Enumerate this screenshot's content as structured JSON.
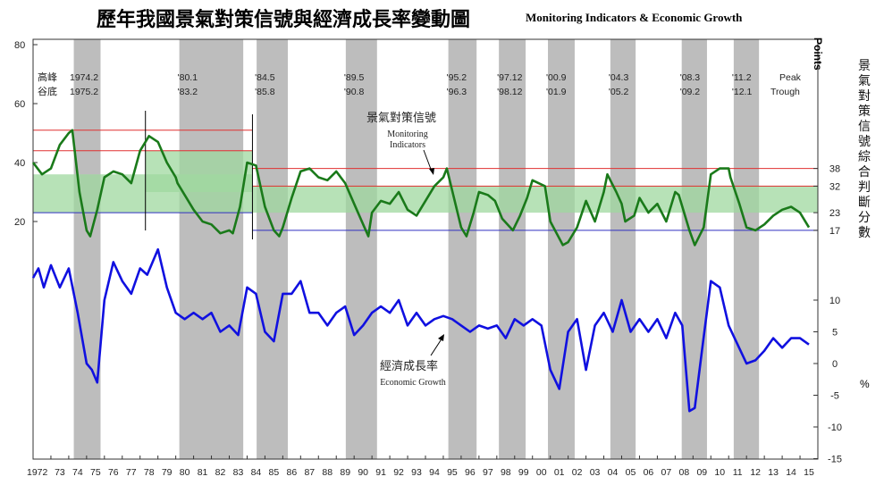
{
  "title": {
    "zh": "歷年我國景氣對策信號與經濟成長率變動圖",
    "en": "Monitoring Indicators & Economic Growth"
  },
  "axes": {
    "left_ticks": [
      "80",
      "60",
      "40",
      "20"
    ],
    "right_points_ticks": [
      "38",
      "32",
      "23",
      "17"
    ],
    "right_growth_ticks": [
      "10",
      "5",
      "0",
      "-5",
      "-10",
      "-15"
    ],
    "points_label": "Points",
    "right_ylabel_zh": "景氣對策信號綜合判斷分數",
    "percent_label": "%"
  },
  "x_labels": [
    "1972",
    "73",
    "74",
    "75",
    "76",
    "77",
    "78",
    "79",
    "80",
    "81",
    "82",
    "83",
    "84",
    "85",
    "86",
    "87",
    "88",
    "89",
    "90",
    "91",
    "92",
    "93",
    "94",
    "95",
    "96",
    "97",
    "98",
    "99",
    "00",
    "01",
    "02",
    "03",
    "04",
    "05",
    "06",
    "07",
    "08",
    "09",
    "10",
    "11",
    "12",
    "13",
    "14",
    "15"
  ],
  "cycle_labels": {
    "row_headers": [
      "高峰",
      "谷底"
    ],
    "peak_word": "Peak",
    "trough_word": "Trough",
    "peaks": [
      "1974.2",
      "'80.1",
      "'84.5",
      "'89.5",
      "'95.2",
      "'97.12",
      "'00.9",
      "'04.3",
      "'08.3",
      "'11.2"
    ],
    "troughs": [
      "1975.2",
      "'83.2",
      "'85.8",
      "'90.8",
      "'96.3",
      "'98.12",
      "'01.9",
      "'05.2",
      "'09.2",
      "'12.1"
    ]
  },
  "annotations": {
    "monitor_zh": "景氣對策信號",
    "monitor_en_1": "Monitoring",
    "monitor_en_2": "Indicators",
    "growth_zh": "經濟成長率",
    "growth_en": "Economic Growth"
  },
  "colors": {
    "monitoring_line": "#1a7a1a",
    "growth_line": "#1010e0",
    "recession_shade": "#bdbdbd",
    "green_band": "#9fd89f",
    "red_threshold": "#e03030",
    "blue_threshold": "#3030c0"
  },
  "chart_data": [
    {
      "type": "line",
      "name": "景氣對策信號 Monitoring Indicators",
      "x_range": [
        1972,
        2016
      ],
      "y_unit": "points",
      "x": [
        1972,
        1972.5,
        1973,
        1973.5,
        1974,
        1974.2,
        1974.6,
        1975,
        1975.2,
        1975.6,
        1976,
        1976.5,
        1977,
        1977.5,
        1978,
        1978.5,
        1979,
        1979.5,
        1980,
        1980.1,
        1980.6,
        1981,
        1981.5,
        1982,
        1982.5,
        1983,
        1983.2,
        1983.6,
        1984,
        1984.5,
        1985,
        1985.5,
        1985.8,
        1986,
        1986.5,
        1987,
        1987.5,
        1988,
        1988.5,
        1989,
        1989.5,
        1990,
        1990.8,
        1991,
        1991.5,
        1992,
        1992.5,
        1993,
        1993.5,
        1994,
        1994.5,
        1995,
        1995.2,
        1995.6,
        1996,
        1996.3,
        1996.7,
        1997,
        1997.5,
        1997.9,
        1998.3,
        1998.9,
        1999.3,
        1999.7,
        2000,
        2000.7,
        2001,
        2001.7,
        2002,
        2002.5,
        2003,
        2003.5,
        2004,
        2004.2,
        2004.7,
        2005,
        2005.2,
        2005.7,
        2006,
        2006.5,
        2007,
        2007.5,
        2008,
        2008.2,
        2008.8,
        2009.1,
        2009.6,
        2010,
        2010.5,
        2011,
        2011.1,
        2011.6,
        2012,
        2012.5,
        2013,
        2013.5,
        2014,
        2014.5,
        2015,
        2015.5
      ],
      "values": [
        40,
        36,
        38,
        46,
        50,
        51,
        30,
        17,
        15,
        24,
        35,
        37,
        36,
        33,
        44,
        49,
        47,
        40,
        35,
        33,
        28,
        24,
        20,
        19,
        16,
        17,
        16,
        25,
        40,
        39,
        25,
        17,
        15,
        18,
        28,
        37,
        38,
        35,
        34,
        37,
        33,
        26,
        15,
        23,
        27,
        26,
        30,
        24,
        22,
        27,
        32,
        35,
        38,
        28,
        18,
        15,
        23,
        30,
        29,
        27,
        21,
        17,
        22,
        28,
        34,
        32,
        20,
        12,
        13,
        18,
        27,
        20,
        30,
        36,
        30,
        26,
        20,
        22,
        28,
        23,
        26,
        20,
        30,
        29,
        17,
        12,
        18,
        36,
        38,
        38,
        35,
        26,
        18,
        17,
        19,
        22,
        24,
        25,
        23,
        18
      ]
    },
    {
      "type": "line",
      "name": "經濟成長率 Economic Growth",
      "x_range": [
        1972,
        2016
      ],
      "y_unit": "%",
      "x": [
        1972,
        1972.3,
        1972.6,
        1973,
        1973.5,
        1974,
        1974.5,
        1975,
        1975.3,
        1975.6,
        1976,
        1976.5,
        1977,
        1977.5,
        1978,
        1978.4,
        1979,
        1979.5,
        1980,
        1980.5,
        1981,
        1981.5,
        1982,
        1982.5,
        1983,
        1983.5,
        1984,
        1984.5,
        1985,
        1985.5,
        1986,
        1986.5,
        1987,
        1987.5,
        1988,
        1988.5,
        1989,
        1989.5,
        1990,
        1990.5,
        1991,
        1991.5,
        1992,
        1992.5,
        1993,
        1993.5,
        1994,
        1994.5,
        1995,
        1995.5,
        1996,
        1996.5,
        1997,
        1997.5,
        1998,
        1998.5,
        1999,
        1999.5,
        2000,
        2000.5,
        2001,
        2001.5,
        2002,
        2002.5,
        2003,
        2003.5,
        2004,
        2004.5,
        2005,
        2005.5,
        2006,
        2006.5,
        2007,
        2007.5,
        2008,
        2008.4,
        2008.8,
        2009.1,
        2009.5,
        2010,
        2010.5,
        2011,
        2011.5,
        2012,
        2012.5,
        2013,
        2013.5,
        2014,
        2014.5,
        2015,
        2015.5
      ],
      "values": [
        13.5,
        15,
        12,
        15.5,
        12,
        15,
        8,
        0,
        -1,
        -3,
        10,
        16,
        13,
        11,
        15,
        14,
        18,
        12,
        8,
        7,
        8,
        7,
        8,
        5,
        6,
        4.5,
        12,
        11,
        5,
        3.5,
        11,
        11,
        13,
        8,
        8,
        6,
        8,
        9,
        4.5,
        6,
        8,
        9,
        8,
        10,
        6,
        8,
        6,
        7,
        7.5,
        7,
        6,
        5,
        6,
        5.5,
        6,
        4,
        7,
        6,
        7,
        6,
        -1,
        -4,
        5,
        7,
        -1,
        6,
        8,
        5,
        10,
        5,
        7,
        5,
        7,
        4,
        8,
        6,
        -7.5,
        -7,
        2,
        13,
        12,
        6,
        3,
        0,
        0.5,
        2,
        4,
        2.5,
        4,
        4,
        3
      ]
    }
  ]
}
